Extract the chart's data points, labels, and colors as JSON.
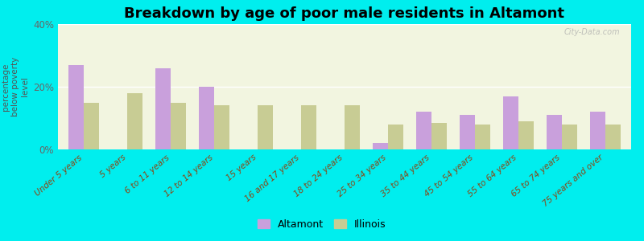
{
  "title": "Breakdown by age of poor male residents in Altamont",
  "ylabel": "percentage\nbelow poverty\nlevel",
  "categories": [
    "Under 5 years",
    "5 years",
    "6 to 11 years",
    "12 to 14 years",
    "15 years",
    "16 and 17 years",
    "18 to 24 years",
    "25 to 34 years",
    "35 to 44 years",
    "45 to 54 years",
    "55 to 64 years",
    "65 to 74 years",
    "75 years and over"
  ],
  "altamont_values": [
    27.0,
    0.0,
    26.0,
    20.0,
    0.0,
    0.0,
    0.0,
    2.0,
    12.0,
    11.0,
    17.0,
    11.0,
    12.0
  ],
  "illinois_values": [
    15.0,
    18.0,
    15.0,
    14.0,
    14.0,
    14.0,
    14.0,
    8.0,
    8.5,
    8.0,
    9.0,
    8.0,
    8.0
  ],
  "altamont_color": "#c9a0dc",
  "illinois_color": "#c8cc94",
  "background_color": "#00eeee",
  "plot_bg_color": "#f2f5e0",
  "ylim": [
    0,
    40
  ],
  "yticks": [
    0,
    20,
    40
  ],
  "ytick_labels": [
    "0%",
    "20%",
    "40%"
  ],
  "bar_width": 0.35,
  "title_fontsize": 13,
  "label_fontsize": 7.5,
  "watermark": "City-Data.com"
}
